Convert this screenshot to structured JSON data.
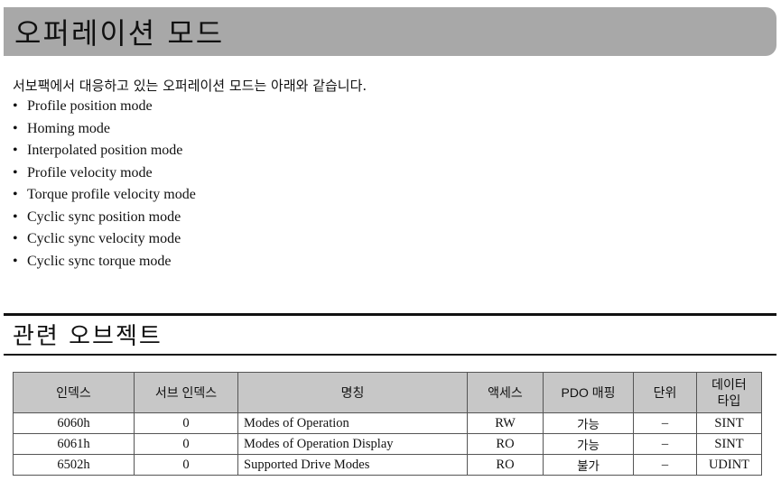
{
  "title": "오퍼레이션 모드",
  "intro": "서보팩에서 대응하고 있는 오퍼레이션 모드는 아래와 같습니다.",
  "bullet": "•",
  "modes": [
    "Profile position mode",
    "Homing mode",
    "Interpolated position mode",
    "Profile velocity mode",
    "Torque profile velocity mode",
    "Cyclic sync position mode",
    "Cyclic sync velocity mode",
    "Cyclic sync torque mode"
  ],
  "section_title": "관련 오브젝트",
  "table": {
    "headers": [
      "인덱스",
      "서브 인덱스",
      "명칭",
      "액세스",
      "PDO 매핑",
      "단위",
      "데이터\n타입"
    ],
    "rows": [
      [
        "6060h",
        "0",
        "Modes of Operation",
        "RW",
        "가능",
        "–",
        "SINT"
      ],
      [
        "6061h",
        "0",
        "Modes of Operation Display",
        "RO",
        "가능",
        "–",
        "SINT"
      ],
      [
        "6502h",
        "0",
        "Supported Drive Modes",
        "RO",
        "불가",
        "–",
        "UDINT"
      ]
    ]
  },
  "colors": {
    "title_bar": "#a8a8a8",
    "table_header": "#c7c7c7"
  }
}
